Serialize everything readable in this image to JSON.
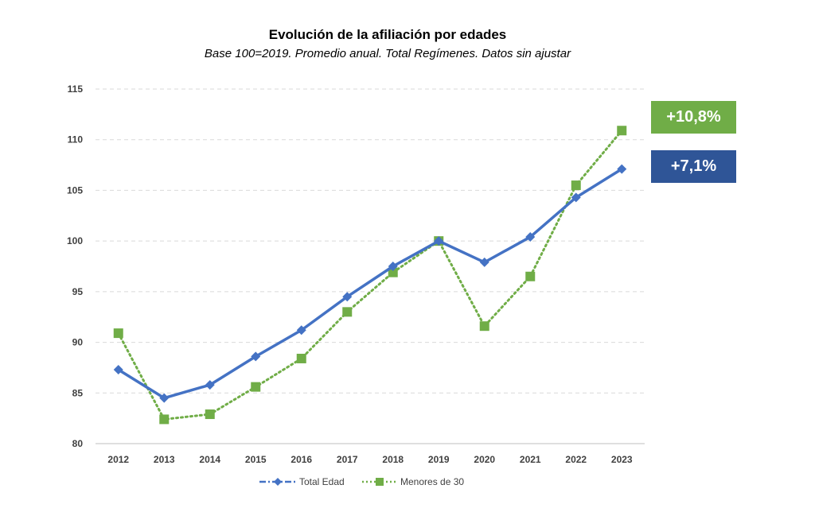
{
  "chart_data": {
    "type": "line",
    "title": "Evolución de la afiliación por edades",
    "subtitle": "Base 100=2019. Promedio anual. Total Regímenes. Datos sin ajustar",
    "categories": [
      "2012",
      "2013",
      "2014",
      "2015",
      "2016",
      "2017",
      "2018",
      "2019",
      "2020",
      "2021",
      "2022",
      "2023"
    ],
    "series": [
      {
        "name": "Total Edad",
        "color": "#4472C4",
        "marker": "diamond",
        "values": [
          87.3,
          84.5,
          85.8,
          88.6,
          91.2,
          94.5,
          97.5,
          100.0,
          97.9,
          100.4,
          104.3,
          107.1
        ]
      },
      {
        "name": "Menores de 30",
        "color": "#70AD47",
        "marker": "square",
        "values": [
          90.9,
          82.4,
          82.9,
          85.6,
          88.4,
          93.0,
          96.9,
          100.0,
          91.6,
          96.5,
          105.5,
          110.9
        ]
      }
    ],
    "ylim": [
      80,
      115
    ],
    "yticks": [
      "80",
      "85",
      "90",
      "95",
      "100",
      "105",
      "110",
      "115"
    ],
    "grid": true,
    "legend": "bottom",
    "annotations": [
      {
        "text": "+10,8%",
        "color": "#70AD47"
      },
      {
        "text": "+7,1%",
        "color": "#2F5597"
      }
    ]
  }
}
